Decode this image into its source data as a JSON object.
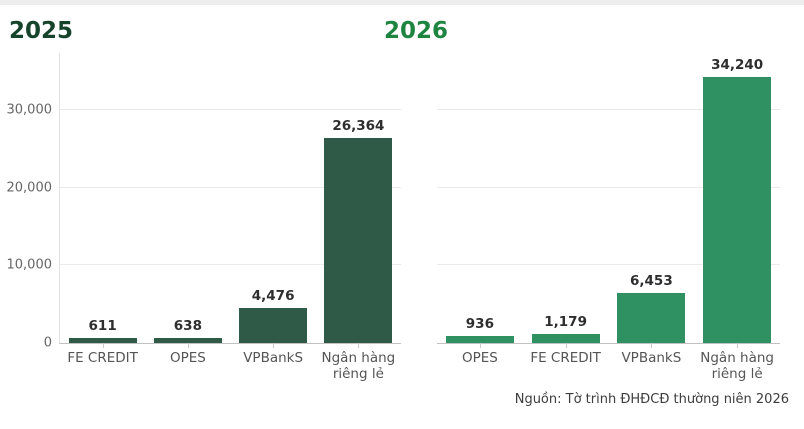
{
  "page": {
    "source_note": "Nguồn: Tờ trình ĐHĐCĐ thường niên 2026"
  },
  "colors": {
    "title_2025": "#15432b",
    "title_2026": "#1d8540",
    "bar_2025": "#2f5a48",
    "bar_2026": "#2f9061",
    "gridline": "#eaeaea",
    "baseline": "#c2c2c2",
    "tick_label": "#666666",
    "value_label": "#2e2e2e",
    "source_text": "#3d3d3d"
  },
  "chart_data": [
    {
      "type": "bar",
      "title": "2025",
      "categories": [
        "FE CREDIT",
        "OPES",
        "VPBankS",
        "Ngân hàng riêng lẻ"
      ],
      "values": [
        611,
        638,
        4476,
        26364
      ],
      "value_labels": [
        "611",
        "638",
        "4,476",
        "26,364"
      ],
      "bar_color": "#2f5a48",
      "ylim": [
        0,
        37300
      ],
      "yticks": [
        0,
        10000,
        20000,
        30000
      ],
      "ytick_labels": [
        "0",
        "10,000",
        "20,000",
        "30,000"
      ],
      "show_y_axis": true,
      "grid": true,
      "legend": "none",
      "xlabel": "",
      "ylabel": ""
    },
    {
      "type": "bar",
      "title": "2026",
      "categories": [
        "OPES",
        "FE CREDIT",
        "VPBankS",
        "Ngân hàng riêng lẻ"
      ],
      "values": [
        936,
        1179,
        6453,
        34240
      ],
      "value_labels": [
        "936",
        "1,179",
        "6,453",
        "34,240"
      ],
      "bar_color": "#2f9061",
      "ylim": [
        0,
        37300
      ],
      "yticks": [
        0,
        10000,
        20000,
        30000
      ],
      "ytick_labels": [
        "0",
        "10,000",
        "20,000",
        "30,000"
      ],
      "show_y_axis": false,
      "grid": true,
      "legend": "none",
      "xlabel": "",
      "ylabel": ""
    }
  ]
}
